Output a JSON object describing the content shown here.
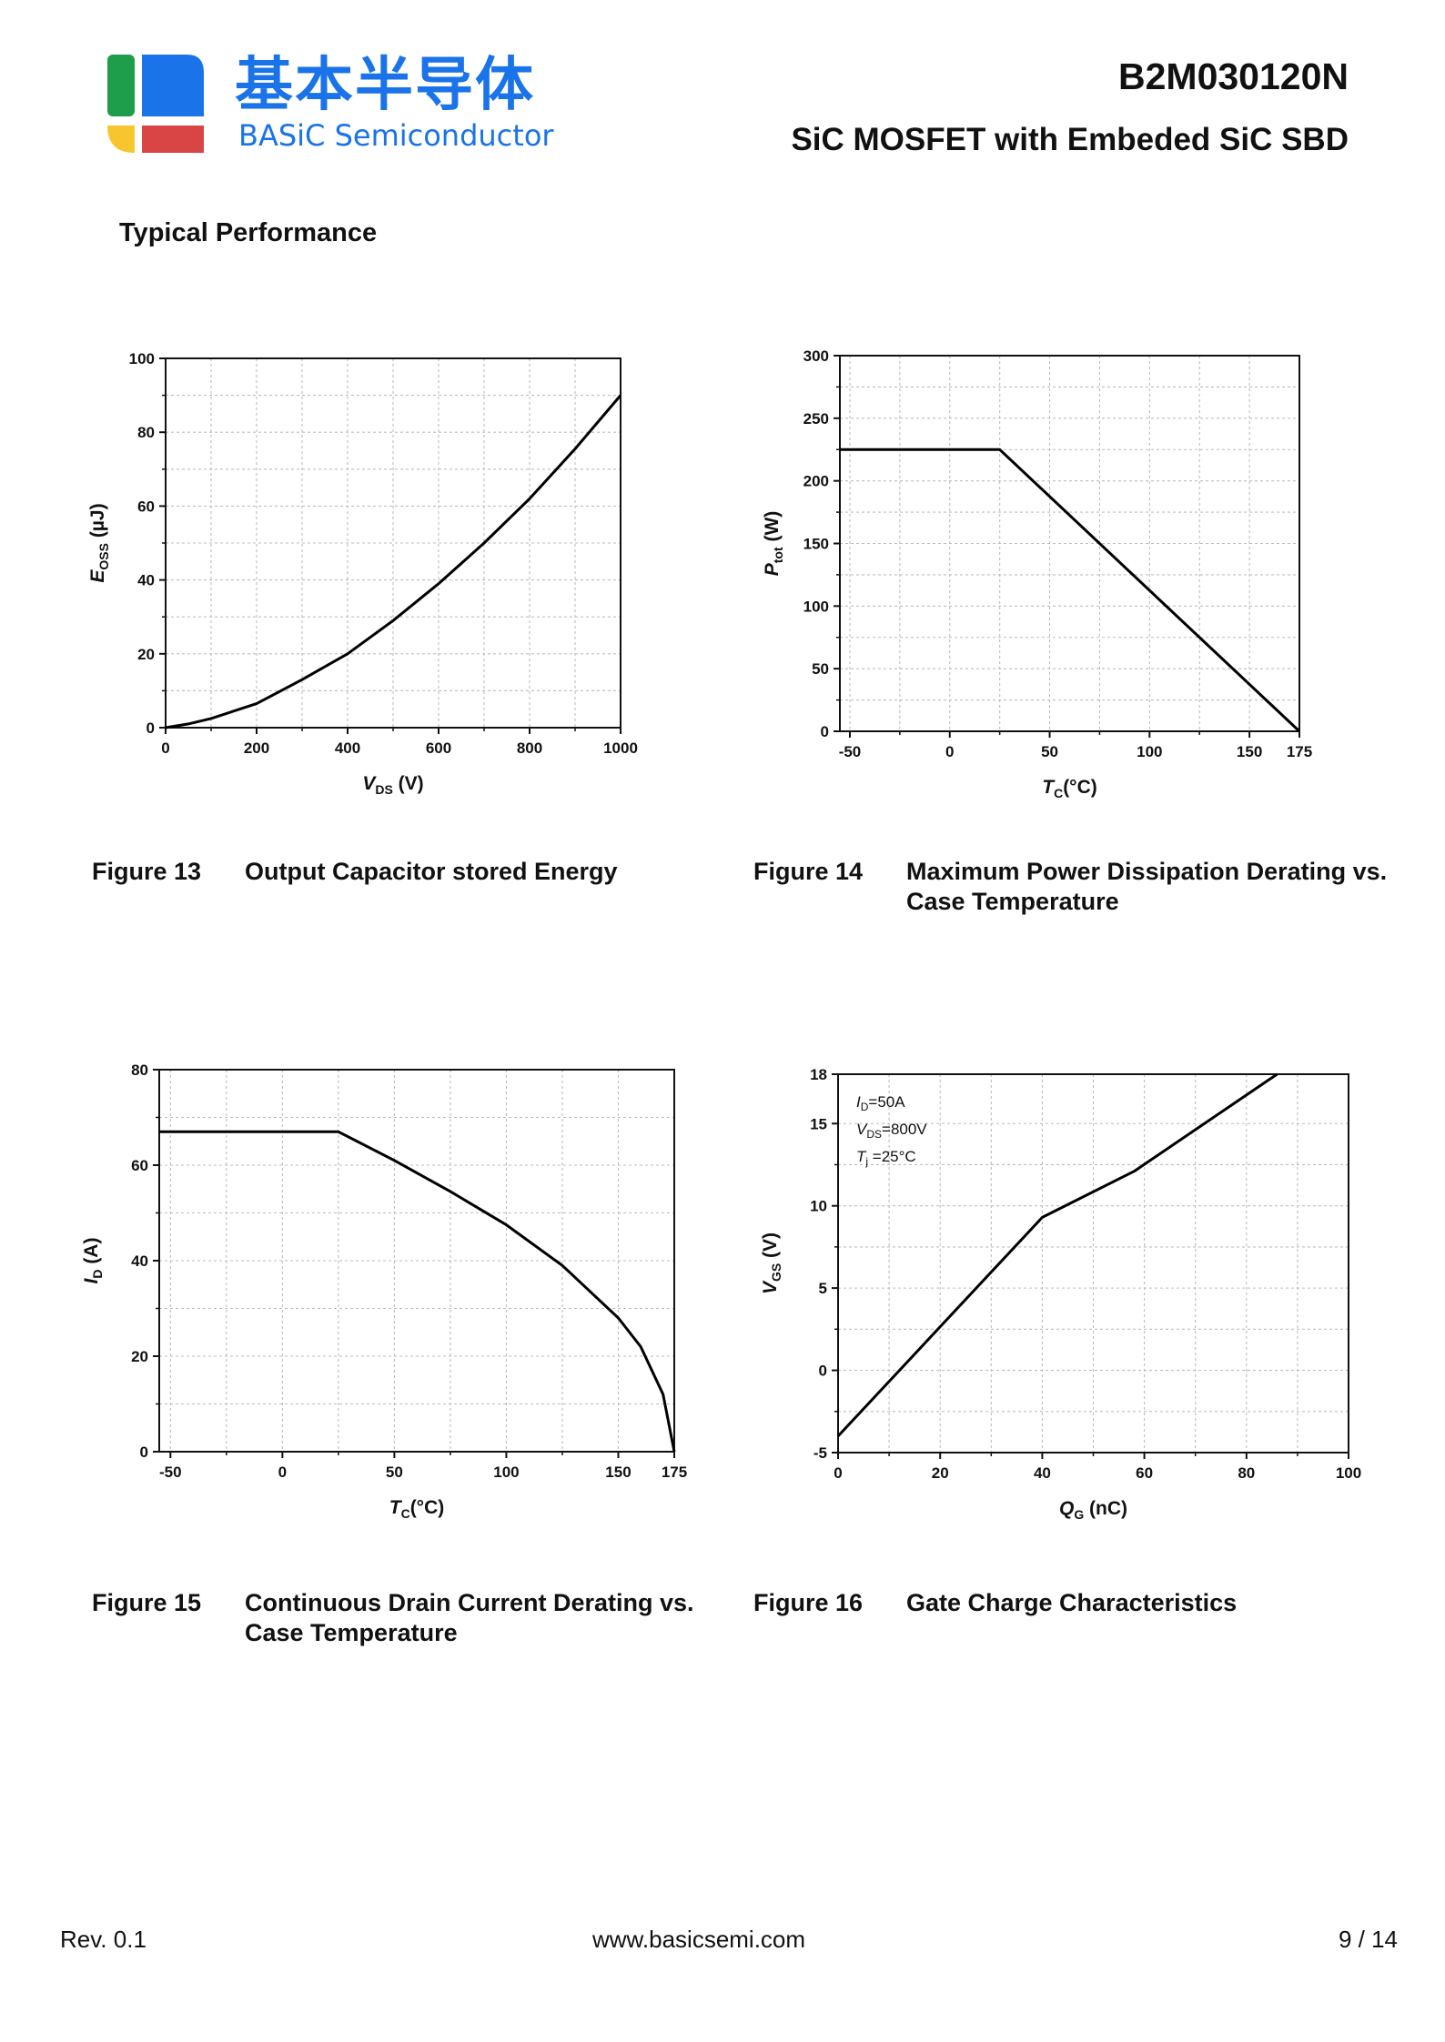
{
  "header": {
    "logo_cn": "基本半导体",
    "logo_en": "BASiC Semiconductor",
    "part_number": "B2M030120N",
    "part_description": "SiC MOSFET with Embeded SiC SBD",
    "colors": {
      "brand_blue": "#1a73e8",
      "logo_green": "#1e9e4a",
      "logo_yellow": "#f7c62f",
      "logo_red": "#d94545"
    }
  },
  "section_title": "Typical Performance",
  "figures": [
    {
      "number": "Figure 13",
      "title": "Output Capacitor stored Energy"
    },
    {
      "number": "Figure 14",
      "title": "Maximum Power Dissipation Derating vs. Case Temperature"
    },
    {
      "number": "Figure 15",
      "title": "Continuous Drain Current Derating vs. Case Temperature"
    },
    {
      "number": "Figure 16",
      "title": "Gate Charge Characteristics"
    }
  ],
  "chart_data": [
    {
      "type": "line",
      "xlabel": {
        "sym": "V",
        "sub": "DS",
        "unit": " (V)"
      },
      "ylabel": {
        "sym": "E",
        "sub": "OSS",
        "unit": " (µJ)"
      },
      "xlim": [
        0,
        1000
      ],
      "ylim": [
        0,
        100
      ],
      "xticks": [
        0,
        200,
        400,
        600,
        800,
        1000
      ],
      "yticks": [
        0,
        20,
        40,
        60,
        80,
        100
      ],
      "xticklabels": [
        "0",
        "200",
        "400",
        "600",
        "800",
        "1000"
      ],
      "yticklabels": [
        "0",
        "20",
        "40",
        "60",
        "80",
        "100"
      ],
      "xminor": [
        100,
        300,
        500,
        700,
        900
      ],
      "yminor": [
        10,
        30,
        50,
        70,
        90
      ],
      "grid": true,
      "series": [
        {
          "x": [
            0,
            50,
            100,
            200,
            300,
            400,
            500,
            600,
            700,
            800,
            900,
            1000
          ],
          "y": [
            0,
            1,
            2.5,
            6.5,
            13,
            20,
            29,
            39,
            50,
            62,
            75.5,
            90
          ]
        }
      ]
    },
    {
      "type": "line",
      "xlabel": {
        "sym": "T",
        "sub": "C",
        "unit": "(°C)"
      },
      "ylabel": {
        "sym": "P",
        "sub": "tot",
        "unit": " (W)"
      },
      "xlim": [
        -55,
        175
      ],
      "ylim": [
        0,
        300
      ],
      "xticks": [
        -50,
        0,
        50,
        100,
        150,
        175
      ],
      "yticks": [
        0,
        50,
        100,
        150,
        200,
        250,
        300
      ],
      "xticklabels": [
        "-50",
        "0",
        "50",
        "100",
        "150",
        "175"
      ],
      "yticklabels": [
        "0",
        "50",
        "100",
        "150",
        "200",
        "250",
        "300"
      ],
      "xminor": [
        -25,
        25,
        75,
        125
      ],
      "yminor": [
        25,
        75,
        125,
        175,
        225,
        275
      ],
      "grid": true,
      "series": [
        {
          "x": [
            -55,
            25,
            175
          ],
          "y": [
            225,
            225,
            0
          ]
        }
      ]
    },
    {
      "type": "line",
      "xlabel": {
        "sym": "T",
        "sub": "C",
        "unit": "(°C)"
      },
      "ylabel": {
        "sym": "I",
        "sub": "D",
        "unit": " (A)"
      },
      "xlim": [
        -55,
        175
      ],
      "ylim": [
        0,
        80
      ],
      "xticks": [
        -50,
        0,
        50,
        100,
        150,
        175
      ],
      "yticks": [
        0,
        20,
        40,
        60,
        80
      ],
      "xticklabels": [
        "-50",
        "0",
        "50",
        "100",
        "150",
        "175"
      ],
      "yticklabels": [
        "0",
        "20",
        "40",
        "60",
        "80"
      ],
      "xminor": [
        -25,
        25,
        75,
        125
      ],
      "yminor": [
        10,
        30,
        50,
        70
      ],
      "grid": true,
      "series": [
        {
          "x": [
            -55,
            25,
            50,
            75,
            100,
            125,
            150,
            160,
            170,
            175
          ],
          "y": [
            67,
            67,
            61,
            54.5,
            47.5,
            39,
            28,
            22,
            12,
            0
          ]
        }
      ]
    },
    {
      "type": "line",
      "xlabel": {
        "sym": "Q",
        "sub": "G",
        "unit": " (nC)"
      },
      "ylabel": {
        "sym": "V",
        "sub": "GS",
        "unit": " (V)"
      },
      "xlim": [
        0,
        100
      ],
      "ylim": [
        -5,
        18
      ],
      "xticks": [
        0,
        20,
        40,
        60,
        80,
        100
      ],
      "yticks": [
        -5,
        0,
        5,
        10,
        15,
        18
      ],
      "xticklabels": [
        "0",
        "20",
        "40",
        "60",
        "80",
        "100"
      ],
      "yticklabels": [
        "-5",
        "0",
        "5",
        "10",
        "15",
        "18"
      ],
      "xminor": [
        10,
        30,
        50,
        70,
        90
      ],
      "yminor": [
        -2.5,
        2.5,
        7.5,
        12.5
      ],
      "grid": true,
      "annotations": [
        {
          "sym": "I",
          "sub": "D",
          "rest": "=50A"
        },
        {
          "sym": "V",
          "sub": "DS",
          "rest": "=800V"
        },
        {
          "sym": "T",
          "sub": "j",
          "rest": " =25°C"
        }
      ],
      "series": [
        {
          "x": [
            0,
            40,
            58,
            86
          ],
          "y": [
            -4,
            9.3,
            12.1,
            18
          ]
        }
      ]
    }
  ],
  "footer": {
    "revision": "Rev. 0.1",
    "website": "www.basicsemi.com",
    "page": "9 / 14"
  }
}
